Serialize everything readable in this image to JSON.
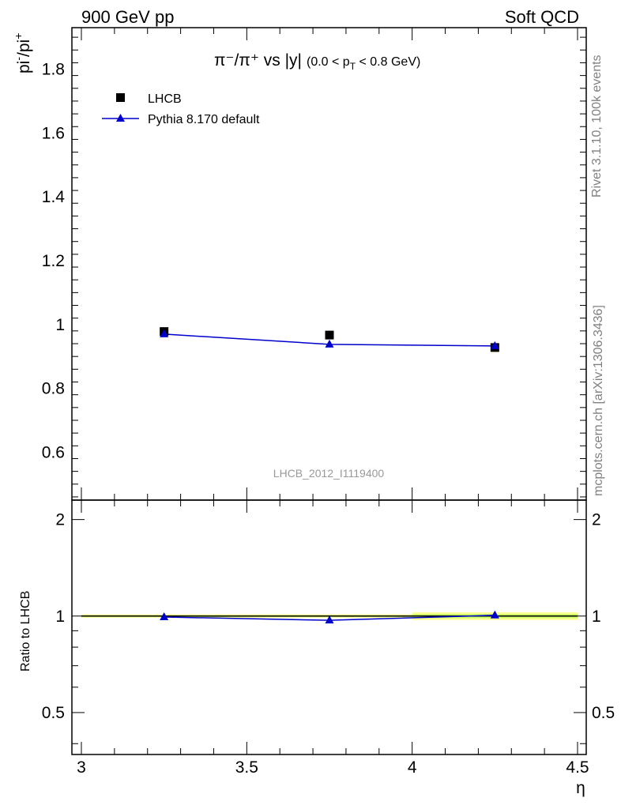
{
  "header": {
    "left_text": "900 GeV pp",
    "right_text": "Soft QCD"
  },
  "side_labels": {
    "rivet": "Rivet 3.1.10,  100k events",
    "mcplots": "mcplots.cern.ch [arXiv:1306.3436]"
  },
  "chart_data": {
    "type": "scatter",
    "title": "π⁻/π⁺ vs |y|",
    "title_cut": "(0.0 < p_T < 0.8 GeV)",
    "watermark": "LHCB_2012_I1119400",
    "xlabel": "η",
    "ylabel": "pi⁻/pi⁺",
    "ratio_ylabel": "Ratio to LHCB",
    "xlim": [
      3.0,
      4.5
    ],
    "ylim": [
      0.45,
      1.93
    ],
    "ratio_ylim": [
      0.37,
      2.3
    ],
    "ratio_log_scale": true,
    "x_ticks": [
      "3",
      "3.5",
      "4",
      "4.5"
    ],
    "y_ticks": [
      "0.6",
      "0.8",
      "1",
      "1.2",
      "1.4",
      "1.6",
      "1.8"
    ],
    "ratio_y_ticks": [
      "0.5",
      "1",
      "2"
    ],
    "legend_position": "top-left",
    "x_bin_edges": [
      3.0,
      3.5,
      4.0,
      4.5
    ],
    "series": [
      {
        "name": "LHCB",
        "style": "black-square-marker",
        "color": "#000000",
        "x": [
          3.25,
          3.75,
          4.25
        ],
        "y": [
          0.978,
          0.967,
          0.928
        ],
        "ratio_band": [
          0.012,
          0.012,
          0.028
        ]
      },
      {
        "name": "Pythia 8.170 default",
        "style": "blue-triangle-line",
        "color": "#0000cc",
        "x": [
          3.25,
          3.75,
          4.25
        ],
        "y": [
          0.97,
          0.938,
          0.933
        ],
        "ratio": [
          0.993,
          0.97,
          1.006
        ]
      }
    ],
    "band_colors": {
      "outer": "#ffff99",
      "inner": "#ccff66"
    }
  }
}
